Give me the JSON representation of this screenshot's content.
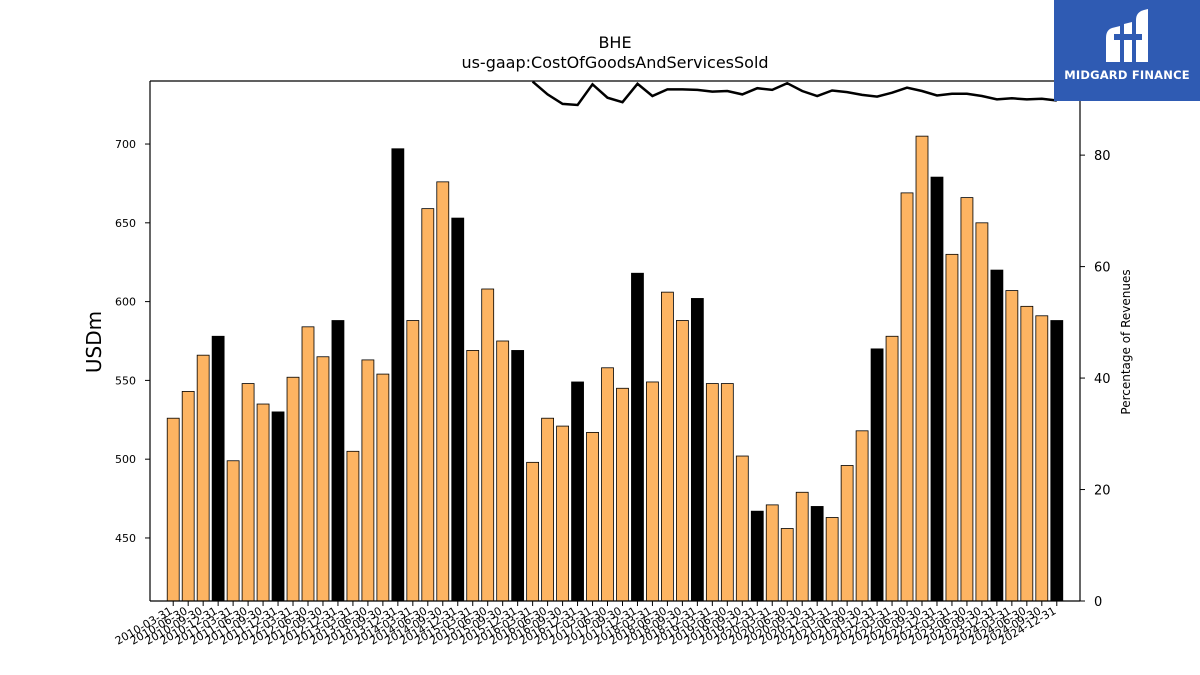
{
  "brand": {
    "name": "MIDGARD FINANCE",
    "color": "#2f5bb3"
  },
  "chart_data": {
    "type": "bar",
    "title": "BHE",
    "subtitle": "us-gaap:CostOfGoodsAndServicesSold",
    "ylabel": "USDm",
    "y2label": "Percentage of Revenues",
    "ylim": [
      410,
      740
    ],
    "y2lim": [
      0,
      93.3
    ],
    "yticks": [
      450,
      500,
      550,
      600,
      650,
      700
    ],
    "y2ticks": [
      0,
      20,
      40,
      60,
      80
    ],
    "colors": {
      "quarter": "#fdb462",
      "annual": "#000000",
      "line": "#000000"
    },
    "categories": [
      "2010-03-31",
      "2010-06-30",
      "2010-09-30",
      "2010-12-31",
      "2011-03-31",
      "2011-06-30",
      "2011-09-30",
      "2011-12-31",
      "2012-03-31",
      "2012-06-30",
      "2012-09-30",
      "2012-12-31",
      "2013-03-31",
      "2013-06-30",
      "2013-09-30",
      "2013-12-31",
      "2014-03-31",
      "2014-06-30",
      "2014-09-30",
      "2014-12-31",
      "2015-03-31",
      "2015-06-30",
      "2015-09-30",
      "2015-12-31",
      "2016-03-31",
      "2016-06-30",
      "2016-09-30",
      "2016-12-31",
      "2017-03-31",
      "2017-06-30",
      "2017-09-30",
      "2017-12-31",
      "2018-03-31",
      "2018-06-30",
      "2018-09-30",
      "2018-12-31",
      "2019-03-31",
      "2019-06-30",
      "2019-09-30",
      "2019-12-31",
      "2020-03-31",
      "2020-06-30",
      "2020-09-30",
      "2020-12-31",
      "2021-03-31",
      "2021-06-30",
      "2021-09-30",
      "2021-12-31",
      "2022-03-31",
      "2022-06-30",
      "2022-09-30",
      "2022-12-31",
      "2023-03-31",
      "2023-06-30",
      "2023-09-30",
      "2023-12-31",
      "2024-03-31",
      "2024-06-30",
      "2024-09-30",
      "2024-12-31"
    ],
    "series": [
      {
        "values": [
          526,
          543,
          566,
          578,
          499,
          548,
          535,
          530,
          552,
          584,
          565,
          588,
          505,
          563,
          554,
          697,
          588,
          659,
          676,
          653,
          569,
          608,
          575,
          569,
          498,
          526,
          521,
          549,
          517,
          558,
          545,
          618,
          549,
          606,
          588,
          602,
          548,
          548,
          502,
          467,
          471,
          456,
          479,
          470,
          463,
          496,
          518,
          570,
          578,
          669,
          705,
          679,
          630,
          666,
          650,
          620,
          607,
          597,
          591,
          588
        ]
      },
      {
        "values": [
          null,
          null,
          null,
          null,
          null,
          null,
          null,
          null,
          null,
          null,
          null,
          null,
          null,
          null,
          null,
          null,
          null,
          null,
          null,
          null,
          null,
          null,
          null,
          null,
          93.2,
          90.9,
          89.2,
          89.0,
          92.7,
          90.3,
          89.5,
          92.8,
          90.6,
          91.8,
          91.8,
          91.7,
          91.4,
          91.5,
          90.9,
          92.0,
          91.7,
          92.9,
          91.5,
          90.6,
          91.6,
          91.3,
          90.8,
          90.5,
          91.2,
          92.1,
          91.5,
          90.7,
          91.0,
          91.0,
          90.6,
          90.0,
          90.2,
          90.0,
          90.1,
          89.8
        ]
      }
    ]
  }
}
